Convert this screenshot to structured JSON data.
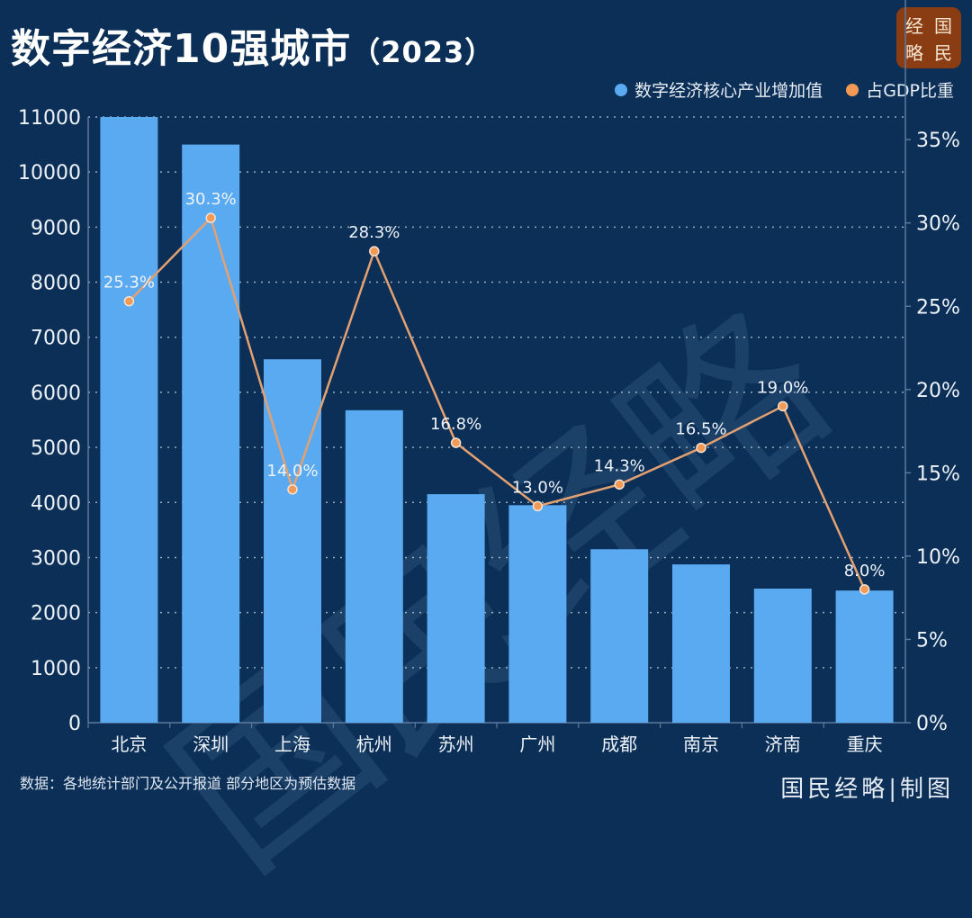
{
  "header": {
    "title": "数字经济10强城市",
    "year": "（2023）"
  },
  "logo": {
    "chars": [
      "经",
      "国",
      "略",
      "民"
    ]
  },
  "legend": {
    "items": [
      {
        "label": "数字经济核心产业增加值",
        "color": "#5aaaf2"
      },
      {
        "label": "占GDP比重",
        "color": "#f29a55"
      }
    ]
  },
  "watermark": "国民经略",
  "footer": {
    "source": "数据：各地统计部门及公开报道 部分地区为预估数据",
    "brand": "国民经略|制图"
  },
  "colors": {
    "background": "#0b2f57",
    "bar": "#5aaaf2",
    "line": "#e3a070",
    "point": "#f29a55",
    "grid": "#c8d6e6"
  },
  "chart_data": {
    "type": "bar",
    "title": "数字经济10强城市（2023）",
    "xlabel": "",
    "ylabel": "",
    "categories": [
      "北京",
      "深圳",
      "上海",
      "杭州",
      "苏州",
      "广州",
      "成都",
      "南京",
      "济南",
      "重庆"
    ],
    "series": [
      {
        "name": "数字经济核心产业增加值",
        "type": "bar",
        "axis": "left",
        "values": [
          11000,
          10500,
          6600,
          5675,
          4150,
          3950,
          3150,
          2875,
          2435,
          2400
        ]
      },
      {
        "name": "占GDP比重",
        "type": "line",
        "axis": "right",
        "values": [
          25.3,
          30.3,
          14.0,
          28.3,
          16.8,
          13.0,
          14.3,
          16.5,
          19.0,
          8.0
        ],
        "labels": [
          "25.3%",
          "30.3%",
          "14.0%",
          "28.3%",
          "16.8%",
          "13.0%",
          "14.3%",
          "16.5%",
          "19.0%",
          "8.0%"
        ]
      }
    ],
    "left_axis": {
      "ylim": [
        0,
        11000
      ],
      "ticks": [
        0,
        1000,
        2000,
        3000,
        4000,
        5000,
        6000,
        7000,
        8000,
        9000,
        10000,
        11000
      ]
    },
    "right_axis": {
      "ylim": [
        0,
        36.36
      ],
      "ticks": [
        0,
        5,
        10,
        15,
        20,
        25,
        30,
        35
      ],
      "tick_labels": [
        "0%",
        "5%",
        "10%",
        "15%",
        "20%",
        "25%",
        "30%",
        "35%"
      ]
    },
    "grid": true,
    "legend_position": "top-right"
  }
}
